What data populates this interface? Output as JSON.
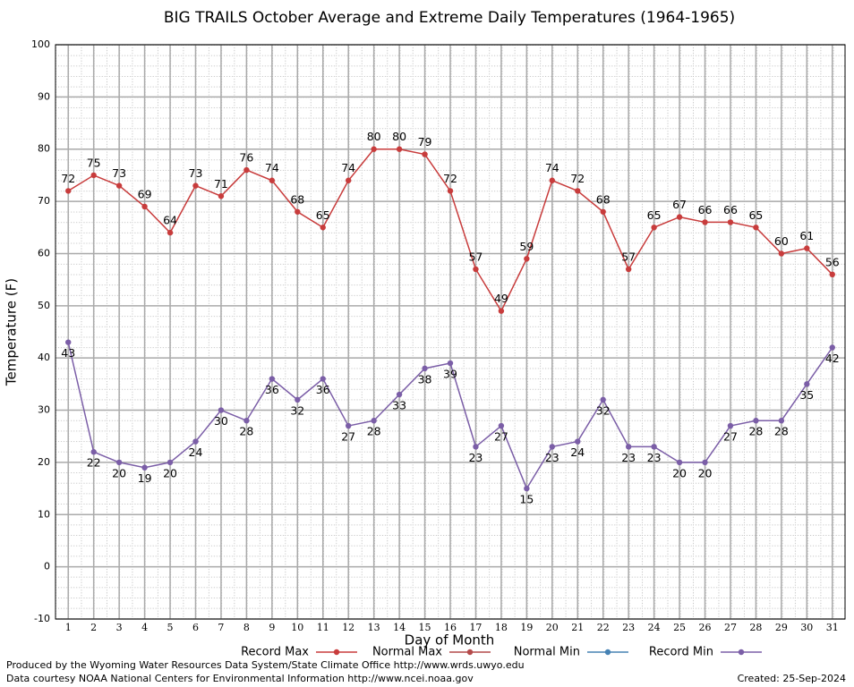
{
  "chart_data": {
    "type": "line",
    "title": "BIG TRAILS October Average and Extreme Daily Temperatures (1964-1965)",
    "xlabel": "Day of Month",
    "ylabel": "Temperature (F)",
    "x": [
      1,
      2,
      3,
      4,
      5,
      6,
      7,
      8,
      9,
      10,
      11,
      12,
      13,
      14,
      15,
      16,
      17,
      18,
      19,
      20,
      21,
      22,
      23,
      24,
      25,
      26,
      27,
      28,
      29,
      30,
      31
    ],
    "xlim": [
      0.5,
      31.5
    ],
    "xticks": [
      1,
      2,
      3,
      4,
      5,
      6,
      7,
      8,
      9,
      10,
      11,
      12,
      13,
      14,
      15,
      16,
      17,
      18,
      19,
      20,
      21,
      22,
      23,
      24,
      25,
      26,
      27,
      28,
      29,
      30,
      31
    ],
    "ylim": [
      -10,
      100
    ],
    "yticks": [
      -10,
      0,
      10,
      20,
      30,
      40,
      50,
      60,
      70,
      80,
      90,
      100
    ],
    "grid": true,
    "series": [
      {
        "name": "Record Max",
        "color": "#c83c3c",
        "label_side": "above",
        "values": [
          72,
          75,
          73,
          69,
          64,
          73,
          71,
          76,
          74,
          68,
          65,
          74,
          80,
          80,
          79,
          72,
          57,
          49,
          59,
          74,
          72,
          68,
          57,
          65,
          67,
          66,
          66,
          65,
          60,
          61,
          56
        ]
      },
      {
        "name": "Normal Max",
        "color": "#b44a4a",
        "values": [
          null,
          null,
          null,
          null,
          null,
          null,
          null,
          null,
          null,
          null,
          null,
          null,
          null,
          null,
          null,
          null,
          null,
          null,
          null,
          null,
          null,
          null,
          null,
          null,
          null,
          null,
          null,
          null,
          null,
          null,
          null
        ]
      },
      {
        "name": "Normal Min",
        "color": "#4682b4",
        "values": [
          null,
          null,
          null,
          null,
          null,
          null,
          null,
          null,
          null,
          null,
          null,
          null,
          null,
          null,
          null,
          null,
          null,
          null,
          null,
          null,
          null,
          null,
          null,
          null,
          null,
          null,
          null,
          null,
          null,
          null,
          null
        ]
      },
      {
        "name": "Record Min",
        "color": "#7b5ea7",
        "label_side": "below",
        "values": [
          43,
          22,
          20,
          19,
          20,
          24,
          30,
          28,
          36,
          32,
          36,
          27,
          28,
          33,
          38,
          39,
          23,
          27,
          15,
          23,
          24,
          32,
          23,
          23,
          20,
          20,
          27,
          28,
          28,
          35,
          42
        ]
      }
    ],
    "footer": [
      "Produced by the Wyoming Water Resources Data System/State Climate Office http://www.wrds.uwyo.edu",
      "Data courtesy NOAA National Centers for Environmental Information http://www.ncei.noaa.gov"
    ],
    "created": "Created:  25-Sep-2024"
  }
}
